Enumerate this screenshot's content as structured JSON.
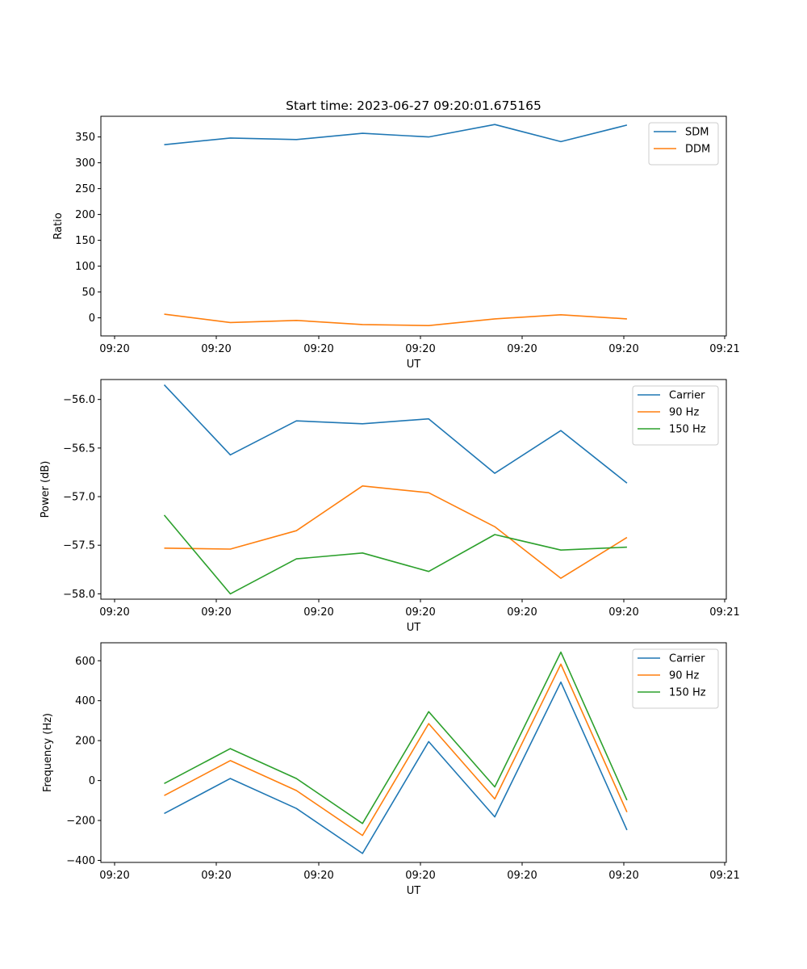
{
  "chart_data": [
    {
      "type": "line",
      "title": "Start time: 2023-06-27 09:20:01.675165",
      "xlabel": "UT",
      "ylabel": "Ratio",
      "xtick_labels": [
        "09:20",
        "09:20",
        "09:20",
        "09:20",
        "09:20",
        "09:20",
        "09:20",
        "09:21"
      ],
      "yticks": [
        "0",
        "50",
        "100",
        "150",
        "200",
        "250",
        "300",
        "350"
      ],
      "ylim": [
        -35,
        390
      ],
      "legend": "top-right",
      "series": [
        {
          "name": "SDM",
          "color": "#1f77b4",
          "values": [
            335,
            348,
            345,
            357,
            350,
            374,
            341,
            373
          ]
        },
        {
          "name": "DDM",
          "color": "#ff7f0e",
          "values": [
            7,
            -9,
            -5,
            -13,
            -15,
            -2,
            6,
            -2
          ]
        }
      ]
    },
    {
      "type": "line",
      "title": "",
      "xlabel": "UT",
      "ylabel": "Power (dB)",
      "xtick_labels": [
        "09:20",
        "09:20",
        "09:20",
        "09:20",
        "09:20",
        "09:20",
        "09:20",
        "09:21"
      ],
      "yticks": [
        "−58.0",
        "−57.5",
        "−57.0",
        "−56.5",
        "−56.0"
      ],
      "ylim": [
        -58.055,
        -55.795
      ],
      "legend": "top-right",
      "series": [
        {
          "name": "Carrier",
          "color": "#1f77b4",
          "values": [
            -55.85,
            -56.57,
            -56.22,
            -56.25,
            -56.2,
            -56.76,
            -56.32,
            -56.86
          ]
        },
        {
          "name": "90 Hz",
          "color": "#ff7f0e",
          "values": [
            -57.53,
            -57.54,
            -57.35,
            -56.89,
            -56.96,
            -57.31,
            -57.84,
            -57.42
          ]
        },
        {
          "name": "150 Hz",
          "color": "#2ca02c",
          "values": [
            -57.19,
            -58.0,
            -57.64,
            -57.58,
            -57.77,
            -57.39,
            -57.55,
            -57.52
          ]
        }
      ]
    },
    {
      "type": "line",
      "title": "",
      "xlabel": "UT",
      "ylabel": "Frequency (Hz)",
      "xtick_labels": [
        "09:20",
        "09:20",
        "09:20",
        "09:20",
        "09:20",
        "09:20",
        "09:20",
        "09:21"
      ],
      "yticks": [
        "−400",
        "−200",
        "0",
        "200",
        "400",
        "600"
      ],
      "ylim": [
        -410,
        690
      ],
      "legend": "top-right",
      "series": [
        {
          "name": "Carrier",
          "color": "#1f77b4",
          "values": [
            -165,
            10,
            -140,
            -365,
            195,
            -182,
            493,
            -248
          ]
        },
        {
          "name": "90 Hz",
          "color": "#ff7f0e",
          "values": [
            -75,
            100,
            -50,
            -275,
            285,
            -92,
            583,
            -158
          ]
        },
        {
          "name": "150 Hz",
          "color": "#2ca02c",
          "values": [
            -15,
            160,
            10,
            -215,
            345,
            -32,
            643,
            -98
          ]
        }
      ]
    }
  ]
}
